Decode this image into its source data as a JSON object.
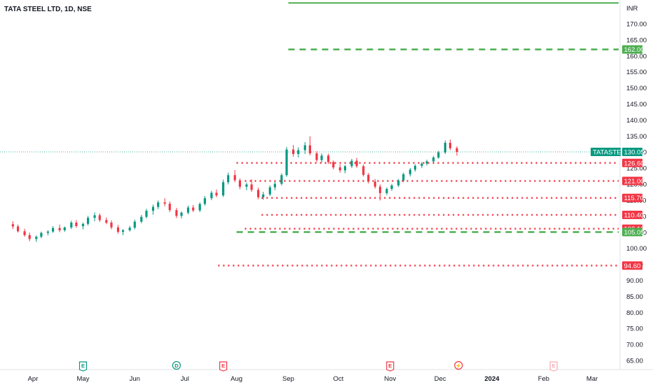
{
  "chart_data": {
    "type": "candlestick",
    "title": "TATA STEEL LTD, 1D, NSE",
    "currency": "INR",
    "symbol": "TATASTEEL",
    "last_price": "130.05",
    "ylim": [
      63,
      178
    ],
    "y_ticks": [
      "65.00",
      "70.00",
      "75.00",
      "80.00",
      "85.00",
      "90.00",
      "95.00",
      "100.00",
      "105.00",
      "110.00",
      "115.00",
      "120.00",
      "125.00",
      "130.00",
      "135.00",
      "140.00",
      "145.00",
      "150.00",
      "155.00",
      "160.00",
      "165.00",
      "170.00"
    ],
    "x_ticks": [
      {
        "label": "Apr",
        "pos": "2023-04-01"
      },
      {
        "label": "May",
        "pos": "2023-05-01"
      },
      {
        "label": "Jun",
        "pos": "2023-06-01"
      },
      {
        "label": "Jul",
        "pos": "2023-07-01"
      },
      {
        "label": "Aug",
        "pos": "2023-08-01"
      },
      {
        "label": "Sep",
        "pos": "2023-09-01"
      },
      {
        "label": "Oct",
        "pos": "2023-10-01"
      },
      {
        "label": "Nov",
        "pos": "2023-11-01"
      },
      {
        "label": "Dec",
        "pos": "2023-12-01"
      },
      {
        "label": "2024",
        "pos": "2024-01-01"
      },
      {
        "label": "Feb",
        "pos": "2024-02-01"
      },
      {
        "label": "Mar",
        "pos": "2024-03-01"
      }
    ],
    "horizontal_levels": [
      {
        "price": 176.5,
        "style": "solid",
        "color": "#4caf50",
        "from": "2023-09-01",
        "label": ""
      },
      {
        "price": 162.0,
        "style": "dashed",
        "color": "#4caf50",
        "from": "2023-09-01",
        "label": "162.00"
      },
      {
        "price": 126.6,
        "style": "dotted",
        "color": "#f23645",
        "from": "2023-08-01",
        "label": "126.60"
      },
      {
        "price": 121.0,
        "style": "dotted",
        "color": "#f23645",
        "from": "2023-08-06",
        "label": "121.00"
      },
      {
        "price": 115.7,
        "style": "dotted",
        "color": "#f23645",
        "from": "2023-08-16",
        "label": "115.70"
      },
      {
        "price": 110.4,
        "style": "dotted",
        "color": "#f23645",
        "from": "2023-08-16",
        "label": "110.40"
      },
      {
        "price": 106.1,
        "style": "dotted",
        "color": "#f23645",
        "from": "2023-08-06",
        "label": "106.10"
      },
      {
        "price": 105.05,
        "style": "dashed",
        "color": "#4caf50",
        "from": "2023-08-01",
        "label": "105.05"
      },
      {
        "price": 94.6,
        "style": "dotted",
        "color": "#f23645",
        "from": "2023-07-21",
        "label": "94.60"
      }
    ],
    "events": [
      {
        "letter": "E",
        "date": "2023-05-01",
        "color": "#089981"
      },
      {
        "letter": "D",
        "date": "2023-06-26",
        "color": "#089981"
      },
      {
        "letter": "E",
        "date": "2023-07-24",
        "color": "#f23645"
      },
      {
        "letter": "E",
        "date": "2023-11-01",
        "color": "#f23645"
      },
      {
        "letter": "⚡",
        "date": "2023-12-12",
        "color": "#f23645"
      },
      {
        "letter": "E",
        "date": "2024-02-07",
        "color": "#f7a9b0"
      }
    ],
    "candles": [
      {
        "d": "2023-03-20",
        "o": 107.5,
        "h": 108.4,
        "l": 106.0,
        "c": 106.8
      },
      {
        "d": "2023-03-23",
        "o": 106.8,
        "h": 107.4,
        "l": 104.9,
        "c": 105.3
      },
      {
        "d": "2023-03-27",
        "o": 105.3,
        "h": 106.1,
        "l": 103.6,
        "c": 104.1
      },
      {
        "d": "2023-03-30",
        "o": 104.1,
        "h": 104.9,
        "l": 102.2,
        "c": 102.9
      },
      {
        "d": "2023-04-03",
        "o": 102.9,
        "h": 104.0,
        "l": 102.0,
        "c": 103.6
      },
      {
        "d": "2023-04-06",
        "o": 103.6,
        "h": 105.2,
        "l": 103.1,
        "c": 104.8
      },
      {
        "d": "2023-04-10",
        "o": 104.8,
        "h": 105.6,
        "l": 104.0,
        "c": 105.2
      },
      {
        "d": "2023-04-13",
        "o": 105.2,
        "h": 106.9,
        "l": 104.8,
        "c": 106.3
      },
      {
        "d": "2023-04-17",
        "o": 106.3,
        "h": 107.4,
        "l": 105.0,
        "c": 105.6
      },
      {
        "d": "2023-04-20",
        "o": 105.6,
        "h": 106.8,
        "l": 105.1,
        "c": 106.5
      },
      {
        "d": "2023-04-24",
        "o": 106.5,
        "h": 108.6,
        "l": 106.0,
        "c": 108.0
      },
      {
        "d": "2023-04-27",
        "o": 108.0,
        "h": 108.8,
        "l": 106.4,
        "c": 106.9
      },
      {
        "d": "2023-05-01",
        "o": 106.9,
        "h": 108.0,
        "l": 105.9,
        "c": 107.6
      },
      {
        "d": "2023-05-04",
        "o": 107.6,
        "h": 110.1,
        "l": 107.1,
        "c": 109.5
      },
      {
        "d": "2023-05-08",
        "o": 109.5,
        "h": 111.2,
        "l": 108.4,
        "c": 110.3
      },
      {
        "d": "2023-05-11",
        "o": 110.3,
        "h": 110.9,
        "l": 108.2,
        "c": 108.8
      },
      {
        "d": "2023-05-15",
        "o": 108.8,
        "h": 109.6,
        "l": 107.5,
        "c": 108.0
      },
      {
        "d": "2023-05-18",
        "o": 108.0,
        "h": 108.7,
        "l": 105.9,
        "c": 106.5
      },
      {
        "d": "2023-05-22",
        "o": 106.5,
        "h": 107.3,
        "l": 104.6,
        "c": 105.1
      },
      {
        "d": "2023-05-25",
        "o": 105.1,
        "h": 106.0,
        "l": 104.1,
        "c": 105.6
      },
      {
        "d": "2023-05-29",
        "o": 105.6,
        "h": 107.0,
        "l": 105.2,
        "c": 106.4
      },
      {
        "d": "2023-06-01",
        "o": 106.4,
        "h": 108.9,
        "l": 105.9,
        "c": 108.3
      },
      {
        "d": "2023-06-05",
        "o": 108.3,
        "h": 110.4,
        "l": 107.8,
        "c": 109.8
      },
      {
        "d": "2023-06-08",
        "o": 109.8,
        "h": 112.3,
        "l": 109.3,
        "c": 111.7
      },
      {
        "d": "2023-06-12",
        "o": 111.7,
        "h": 113.6,
        "l": 110.5,
        "c": 112.9
      },
      {
        "d": "2023-06-15",
        "o": 112.9,
        "h": 114.9,
        "l": 112.2,
        "c": 114.3
      },
      {
        "d": "2023-06-19",
        "o": 114.3,
        "h": 115.6,
        "l": 113.1,
        "c": 113.9
      },
      {
        "d": "2023-06-22",
        "o": 113.9,
        "h": 114.6,
        "l": 111.3,
        "c": 111.9
      },
      {
        "d": "2023-06-26",
        "o": 111.9,
        "h": 112.6,
        "l": 109.4,
        "c": 110.1
      },
      {
        "d": "2023-06-29",
        "o": 110.1,
        "h": 111.5,
        "l": 109.3,
        "c": 111.1
      },
      {
        "d": "2023-07-03",
        "o": 111.1,
        "h": 113.3,
        "l": 110.6,
        "c": 112.7
      },
      {
        "d": "2023-07-06",
        "o": 112.7,
        "h": 113.5,
        "l": 111.3,
        "c": 111.8
      },
      {
        "d": "2023-07-10",
        "o": 111.8,
        "h": 114.3,
        "l": 111.3,
        "c": 113.8
      },
      {
        "d": "2023-07-13",
        "o": 113.8,
        "h": 116.3,
        "l": 113.3,
        "c": 115.6
      },
      {
        "d": "2023-07-17",
        "o": 115.6,
        "h": 117.9,
        "l": 115.0,
        "c": 117.3
      },
      {
        "d": "2023-07-20",
        "o": 117.3,
        "h": 118.3,
        "l": 115.9,
        "c": 116.5
      },
      {
        "d": "2023-07-24",
        "o": 116.5,
        "h": 121.4,
        "l": 116.0,
        "c": 120.6
      },
      {
        "d": "2023-07-27",
        "o": 120.6,
        "h": 123.6,
        "l": 119.9,
        "c": 122.8
      },
      {
        "d": "2023-07-31",
        "o": 122.8,
        "h": 124.4,
        "l": 120.6,
        "c": 121.2
      },
      {
        "d": "2023-08-03",
        "o": 121.2,
        "h": 121.8,
        "l": 118.4,
        "c": 119.2
      },
      {
        "d": "2023-08-07",
        "o": 119.2,
        "h": 120.5,
        "l": 118.1,
        "c": 119.9
      },
      {
        "d": "2023-08-10",
        "o": 119.9,
        "h": 121.5,
        "l": 117.6,
        "c": 118.2
      },
      {
        "d": "2023-08-14",
        "o": 118.2,
        "h": 118.9,
        "l": 115.3,
        "c": 115.9
      },
      {
        "d": "2023-08-17",
        "o": 115.9,
        "h": 117.6,
        "l": 115.1,
        "c": 116.8
      },
      {
        "d": "2023-08-21",
        "o": 116.8,
        "h": 119.6,
        "l": 116.3,
        "c": 119.0
      },
      {
        "d": "2023-08-24",
        "o": 119.0,
        "h": 120.8,
        "l": 118.1,
        "c": 120.1
      },
      {
        "d": "2023-08-28",
        "o": 120.1,
        "h": 123.4,
        "l": 119.6,
        "c": 122.8
      },
      {
        "d": "2023-08-31",
        "o": 122.8,
        "h": 131.6,
        "l": 122.3,
        "c": 130.8
      },
      {
        "d": "2023-09-04",
        "o": 130.8,
        "h": 132.2,
        "l": 128.6,
        "c": 129.4
      },
      {
        "d": "2023-09-07",
        "o": 129.4,
        "h": 131.5,
        "l": 128.3,
        "c": 130.6
      },
      {
        "d": "2023-09-11",
        "o": 130.6,
        "h": 133.1,
        "l": 129.4,
        "c": 132.1
      },
      {
        "d": "2023-09-14",
        "o": 132.1,
        "h": 134.9,
        "l": 129.0,
        "c": 129.6
      },
      {
        "d": "2023-09-18",
        "o": 129.6,
        "h": 130.2,
        "l": 126.9,
        "c": 127.5
      },
      {
        "d": "2023-09-21",
        "o": 127.5,
        "h": 129.6,
        "l": 126.7,
        "c": 128.9
      },
      {
        "d": "2023-09-25",
        "o": 128.9,
        "h": 129.5,
        "l": 126.3,
        "c": 126.9
      },
      {
        "d": "2023-09-28",
        "o": 126.9,
        "h": 127.4,
        "l": 124.6,
        "c": 125.2
      },
      {
        "d": "2023-10-02",
        "o": 125.2,
        "h": 126.2,
        "l": 123.6,
        "c": 124.3
      },
      {
        "d": "2023-10-05",
        "o": 124.3,
        "h": 126.0,
        "l": 123.4,
        "c": 125.6
      },
      {
        "d": "2023-10-09",
        "o": 125.6,
        "h": 127.9,
        "l": 125.0,
        "c": 127.3
      },
      {
        "d": "2023-10-12",
        "o": 127.3,
        "h": 128.2,
        "l": 125.1,
        "c": 125.6
      },
      {
        "d": "2023-10-16",
        "o": 125.6,
        "h": 126.1,
        "l": 122.4,
        "c": 122.9
      },
      {
        "d": "2023-10-19",
        "o": 122.9,
        "h": 123.5,
        "l": 120.2,
        "c": 120.8
      },
      {
        "d": "2023-10-23",
        "o": 120.8,
        "h": 121.6,
        "l": 118.6,
        "c": 119.2
      },
      {
        "d": "2023-10-26",
        "o": 119.2,
        "h": 119.9,
        "l": 114.9,
        "c": 117.2
      },
      {
        "d": "2023-10-30",
        "o": 117.2,
        "h": 119.0,
        "l": 116.6,
        "c": 118.5
      },
      {
        "d": "2023-11-02",
        "o": 118.5,
        "h": 120.1,
        "l": 117.9,
        "c": 119.6
      },
      {
        "d": "2023-11-06",
        "o": 119.6,
        "h": 121.6,
        "l": 119.1,
        "c": 121.1
      },
      {
        "d": "2023-11-09",
        "o": 121.1,
        "h": 123.6,
        "l": 120.6,
        "c": 123.1
      },
      {
        "d": "2023-11-13",
        "o": 123.1,
        "h": 125.0,
        "l": 122.4,
        "c": 124.5
      },
      {
        "d": "2023-11-16",
        "o": 124.5,
        "h": 126.2,
        "l": 123.9,
        "c": 125.7
      },
      {
        "d": "2023-11-20",
        "o": 125.7,
        "h": 126.9,
        "l": 125.0,
        "c": 126.4
      },
      {
        "d": "2023-11-23",
        "o": 126.4,
        "h": 127.6,
        "l": 125.8,
        "c": 127.1
      },
      {
        "d": "2023-11-27",
        "o": 127.1,
        "h": 128.8,
        "l": 126.6,
        "c": 128.3
      },
      {
        "d": "2023-11-30",
        "o": 128.3,
        "h": 130.4,
        "l": 127.9,
        "c": 129.9
      },
      {
        "d": "2023-12-04",
        "o": 129.9,
        "h": 133.6,
        "l": 129.4,
        "c": 132.9
      },
      {
        "d": "2023-12-07",
        "o": 132.9,
        "h": 133.9,
        "l": 130.6,
        "c": 131.2
      },
      {
        "d": "2023-12-11",
        "o": 131.2,
        "h": 131.8,
        "l": 128.9,
        "c": 130.05
      }
    ]
  }
}
